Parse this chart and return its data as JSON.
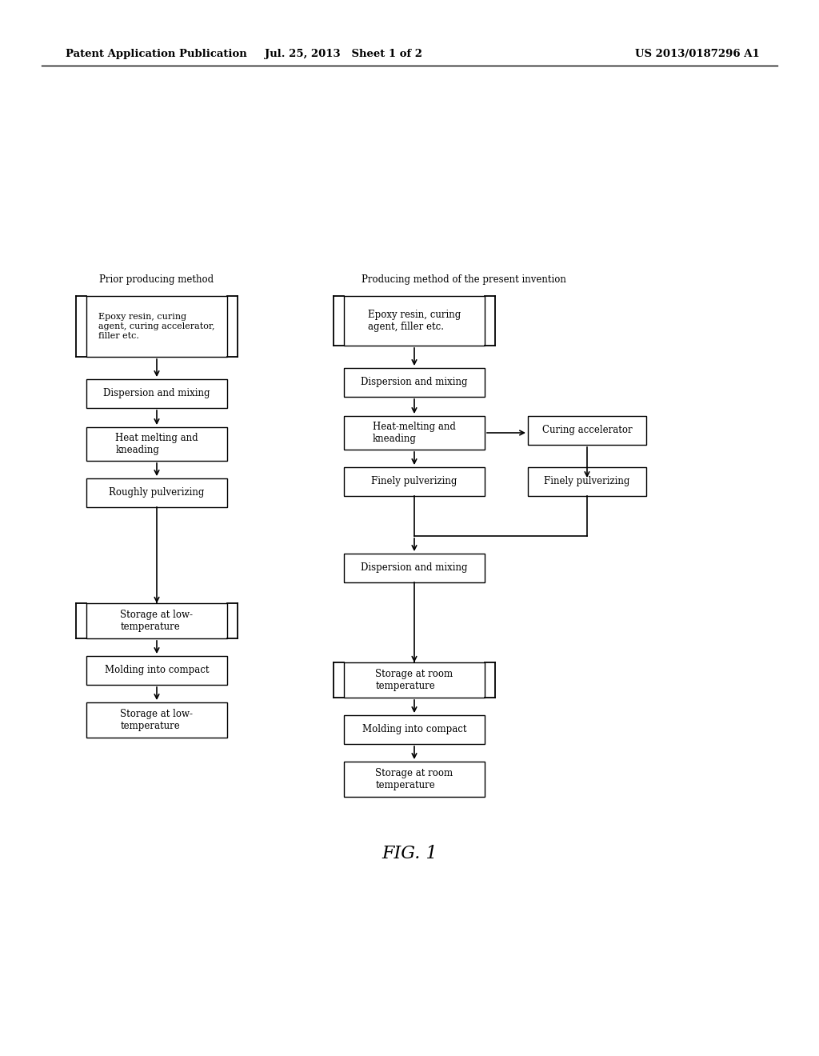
{
  "bg_color": "#ffffff",
  "header_left": "Patent Application Publication",
  "header_mid": "Jul. 25, 2013   Sheet 1 of 2",
  "header_right": "US 2013/0187296 A1",
  "fig_label": "FIG. 1",
  "col_left_title": "Prior producing method",
  "col_right_title": "Producing method of the present invention"
}
